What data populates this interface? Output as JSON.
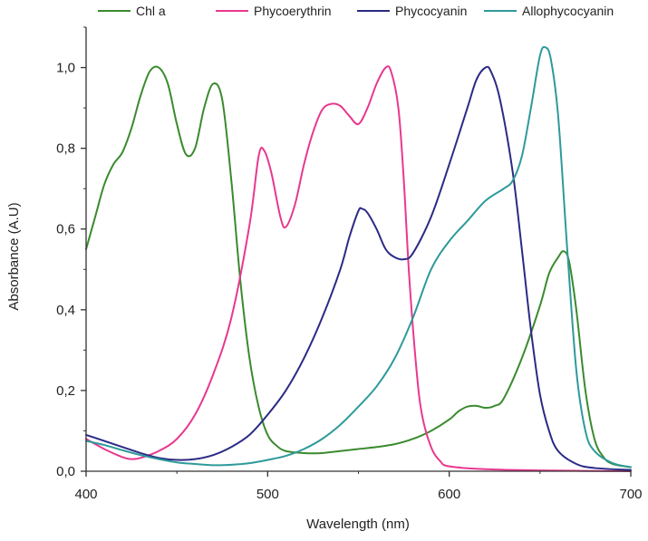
{
  "chart_data": {
    "type": "line",
    "title": "",
    "xlabel": "Wavelength (nm)",
    "ylabel": "Absorbance (A.U)",
    "xlim": [
      400,
      700
    ],
    "ylim": [
      0,
      1.1
    ],
    "xticks": [
      400,
      500,
      600,
      700
    ],
    "xtick_labels": [
      "400",
      "500",
      "600",
      "700"
    ],
    "yticks": [
      0,
      0.2,
      0.4,
      0.6,
      0.8,
      1.0
    ],
    "ytick_labels": [
      "0,0",
      "0,2",
      "0,4",
      "0,6",
      "0,8",
      "1,0"
    ],
    "grid": false,
    "legend_position": "top",
    "series": [
      {
        "name": "Chl a",
        "color": "#3a8a2e",
        "points": [
          [
            400,
            0.55
          ],
          [
            405,
            0.63
          ],
          [
            410,
            0.71
          ],
          [
            415,
            0.76
          ],
          [
            420,
            0.79
          ],
          [
            425,
            0.85
          ],
          [
            430,
            0.93
          ],
          [
            435,
            0.99
          ],
          [
            440,
            1.0
          ],
          [
            445,
            0.96
          ],
          [
            450,
            0.86
          ],
          [
            455,
            0.785
          ],
          [
            460,
            0.8
          ],
          [
            465,
            0.9
          ],
          [
            470,
            0.96
          ],
          [
            475,
            0.92
          ],
          [
            480,
            0.72
          ],
          [
            485,
            0.47
          ],
          [
            490,
            0.28
          ],
          [
            495,
            0.16
          ],
          [
            500,
            0.09
          ],
          [
            505,
            0.063
          ],
          [
            510,
            0.05
          ],
          [
            520,
            0.045
          ],
          [
            530,
            0.045
          ],
          [
            540,
            0.05
          ],
          [
            550,
            0.055
          ],
          [
            560,
            0.06
          ],
          [
            570,
            0.067
          ],
          [
            580,
            0.08
          ],
          [
            590,
            0.1
          ],
          [
            600,
            0.128
          ],
          [
            605,
            0.148
          ],
          [
            610,
            0.16
          ],
          [
            615,
            0.162
          ],
          [
            620,
            0.157
          ],
          [
            625,
            0.162
          ],
          [
            630,
            0.18
          ],
          [
            640,
            0.28
          ],
          [
            650,
            0.41
          ],
          [
            655,
            0.49
          ],
          [
            660,
            0.53
          ],
          [
            663,
            0.545
          ],
          [
            666,
            0.52
          ],
          [
            670,
            0.4
          ],
          [
            675,
            0.2
          ],
          [
            680,
            0.08
          ],
          [
            685,
            0.035
          ],
          [
            690,
            0.018
          ],
          [
            700,
            0.01
          ]
        ]
      },
      {
        "name": "Phycoerythrin",
        "color": "#e8388f",
        "points": [
          [
            400,
            0.08
          ],
          [
            410,
            0.055
          ],
          [
            420,
            0.035
          ],
          [
            425,
            0.03
          ],
          [
            430,
            0.033
          ],
          [
            440,
            0.05
          ],
          [
            450,
            0.08
          ],
          [
            460,
            0.14
          ],
          [
            470,
            0.24
          ],
          [
            480,
            0.38
          ],
          [
            490,
            0.61
          ],
          [
            495,
            0.78
          ],
          [
            498,
            0.795
          ],
          [
            502,
            0.74
          ],
          [
            507,
            0.63
          ],
          [
            510,
            0.605
          ],
          [
            515,
            0.66
          ],
          [
            520,
            0.76
          ],
          [
            525,
            0.84
          ],
          [
            530,
            0.895
          ],
          [
            535,
            0.91
          ],
          [
            540,
            0.905
          ],
          [
            545,
            0.88
          ],
          [
            550,
            0.86
          ],
          [
            555,
            0.9
          ],
          [
            560,
            0.96
          ],
          [
            565,
            1.0
          ],
          [
            568,
            0.99
          ],
          [
            572,
            0.9
          ],
          [
            575,
            0.72
          ],
          [
            578,
            0.48
          ],
          [
            582,
            0.25
          ],
          [
            585,
            0.14
          ],
          [
            590,
            0.06
          ],
          [
            595,
            0.025
          ],
          [
            600,
            0.012
          ],
          [
            620,
            0.005
          ],
          [
            650,
            0.002
          ],
          [
            700,
            0.0
          ]
        ]
      },
      {
        "name": "Phycocyanin",
        "color": "#2b2a85",
        "points": [
          [
            400,
            0.09
          ],
          [
            410,
            0.075
          ],
          [
            420,
            0.06
          ],
          [
            430,
            0.045
          ],
          [
            440,
            0.033
          ],
          [
            450,
            0.028
          ],
          [
            460,
            0.03
          ],
          [
            470,
            0.04
          ],
          [
            480,
            0.06
          ],
          [
            490,
            0.09
          ],
          [
            500,
            0.14
          ],
          [
            510,
            0.2
          ],
          [
            520,
            0.28
          ],
          [
            530,
            0.38
          ],
          [
            540,
            0.5
          ],
          [
            545,
            0.58
          ],
          [
            550,
            0.645
          ],
          [
            552,
            0.65
          ],
          [
            555,
            0.64
          ],
          [
            560,
            0.6
          ],
          [
            565,
            0.55
          ],
          [
            570,
            0.53
          ],
          [
            575,
            0.525
          ],
          [
            580,
            0.54
          ],
          [
            590,
            0.63
          ],
          [
            600,
            0.76
          ],
          [
            610,
            0.9
          ],
          [
            615,
            0.97
          ],
          [
            620,
            1.0
          ],
          [
            623,
            0.99
          ],
          [
            628,
            0.92
          ],
          [
            635,
            0.74
          ],
          [
            640,
            0.55
          ],
          [
            645,
            0.35
          ],
          [
            650,
            0.19
          ],
          [
            655,
            0.1
          ],
          [
            660,
            0.05
          ],
          [
            670,
            0.018
          ],
          [
            680,
            0.008
          ],
          [
            700,
            0.003
          ]
        ]
      },
      {
        "name": "Allophycocyanin",
        "color": "#2e9a9a",
        "points": [
          [
            400,
            0.075
          ],
          [
            410,
            0.065
          ],
          [
            420,
            0.052
          ],
          [
            430,
            0.04
          ],
          [
            440,
            0.03
          ],
          [
            450,
            0.022
          ],
          [
            460,
            0.018
          ],
          [
            470,
            0.015
          ],
          [
            480,
            0.016
          ],
          [
            490,
            0.02
          ],
          [
            500,
            0.028
          ],
          [
            510,
            0.038
          ],
          [
            520,
            0.055
          ],
          [
            530,
            0.08
          ],
          [
            540,
            0.115
          ],
          [
            550,
            0.16
          ],
          [
            560,
            0.21
          ],
          [
            570,
            0.28
          ],
          [
            580,
            0.38
          ],
          [
            590,
            0.5
          ],
          [
            600,
            0.57
          ],
          [
            610,
            0.62
          ],
          [
            620,
            0.67
          ],
          [
            630,
            0.7
          ],
          [
            635,
            0.72
          ],
          [
            640,
            0.78
          ],
          [
            645,
            0.9
          ],
          [
            650,
            1.03
          ],
          [
            653,
            1.05
          ],
          [
            656,
            1.02
          ],
          [
            660,
            0.88
          ],
          [
            665,
            0.55
          ],
          [
            670,
            0.25
          ],
          [
            675,
            0.1
          ],
          [
            680,
            0.05
          ],
          [
            690,
            0.02
          ],
          [
            700,
            0.01
          ]
        ]
      }
    ]
  }
}
